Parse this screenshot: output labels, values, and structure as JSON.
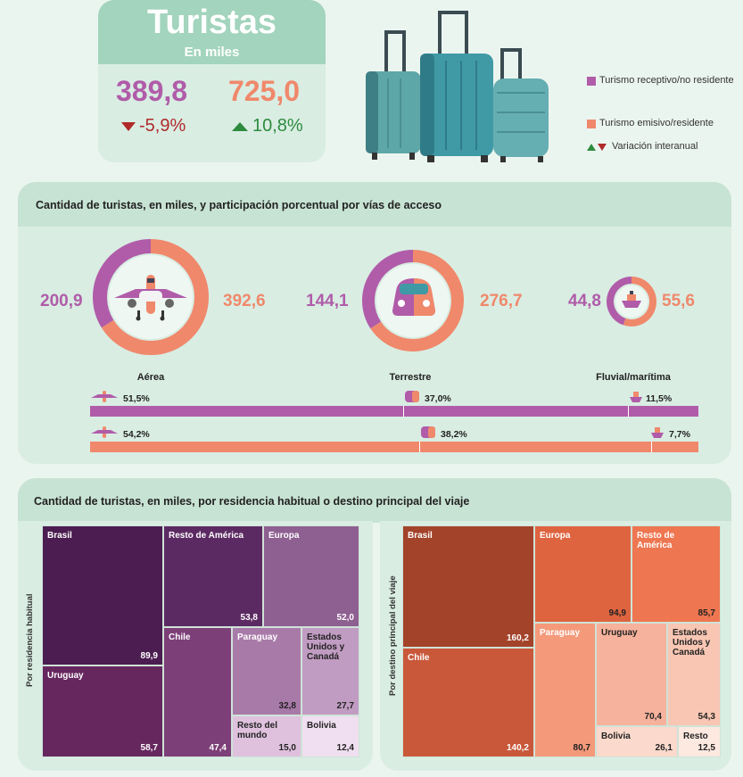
{
  "header": {
    "title": "Turistas",
    "subtitle": "En miles",
    "receptivo_total": "389,8",
    "receptivo_var": "-5,9%",
    "emisivo_total": "725,0",
    "emisivo_var": "10,8%"
  },
  "legend": {
    "receptivo": "Turismo receptivo/no residente",
    "emisivo": "Turismo emisivo/residente",
    "variacion": "Variación interanual"
  },
  "colors": {
    "receptivo": "#b05ca9",
    "emisivo": "#f0886b",
    "up": "#2e8b3d",
    "down": "#b02a2a"
  },
  "access": {
    "title": "Cantidad de turistas, en miles, y participación porcentual por vías de acceso",
    "modes": [
      {
        "label": "Aérea",
        "receptivo": "200,9",
        "emisivo": "392,6",
        "icon": "airplane-icon"
      },
      {
        "label": "Terrestre",
        "receptivo": "144,1",
        "emisivo": "276,7",
        "icon": "car-icon"
      },
      {
        "label": "Fluvial/marítima",
        "receptivo": "44,8",
        "emisivo": "55,6",
        "icon": "ship-icon"
      }
    ],
    "receptivo_shares": [
      "51,5%",
      "37,0%",
      "11,5%"
    ],
    "emisivo_shares": [
      "54,2%",
      "38,2%",
      "7,7%"
    ]
  },
  "residence": {
    "title": "Cantidad de turistas, en miles, por residencia habitual o destino principal del viaje",
    "left_axis": "Por residencia habitual",
    "right_axis": "Por destino principal del viaje",
    "left": [
      {
        "name": "Brasil",
        "value": "89,9"
      },
      {
        "name": "Resto de América",
        "value": "53,8"
      },
      {
        "name": "Europa",
        "value": "52,0"
      },
      {
        "name": "Uruguay",
        "value": "58,7"
      },
      {
        "name": "Chile",
        "value": "47,4"
      },
      {
        "name": "Paraguay",
        "value": "32,8"
      },
      {
        "name": "Estados Unidos y Canadá",
        "value": "27,7"
      },
      {
        "name": "Resto del mundo",
        "value": "15,0"
      },
      {
        "name": "Bolivia",
        "value": "12,4"
      }
    ],
    "right": [
      {
        "name": "Brasil",
        "value": "160,2"
      },
      {
        "name": "Europa",
        "value": "94,9"
      },
      {
        "name": "Resto de América",
        "value": "85,7"
      },
      {
        "name": "Chile",
        "value": "140,2"
      },
      {
        "name": "Paraguay",
        "value": "80,7"
      },
      {
        "name": "Uruguay",
        "value": "70,4"
      },
      {
        "name": "Estados Unidos y Canadá",
        "value": "54,3"
      },
      {
        "name": "Bolivia",
        "value": "26,1"
      },
      {
        "name": "Resto",
        "value": "12,5"
      }
    ]
  }
}
